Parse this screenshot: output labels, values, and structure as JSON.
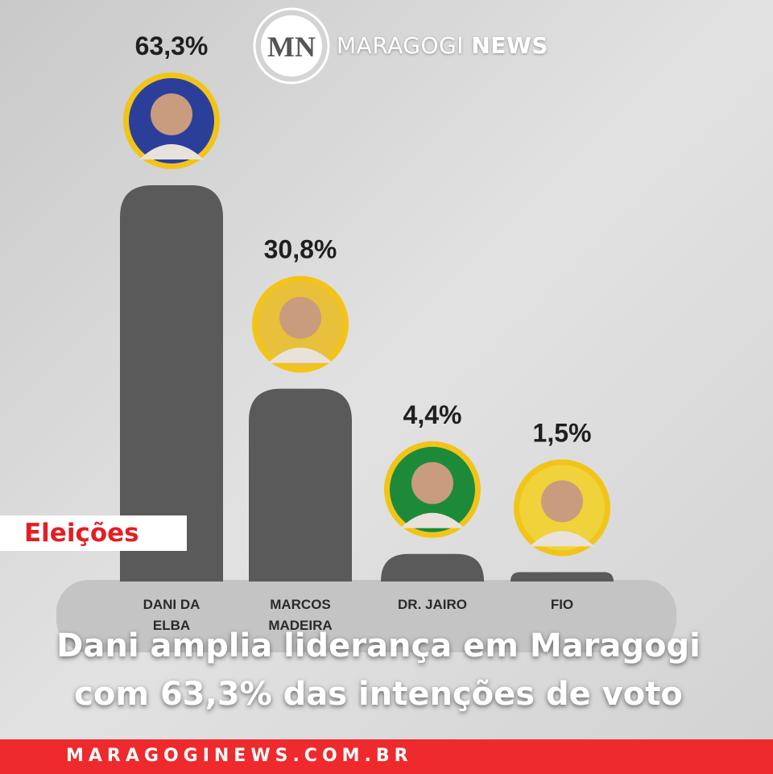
{
  "brand": {
    "name": "MARAGOGI",
    "highlight": "NEWS"
  },
  "chart_data": {
    "type": "bar",
    "categories": [
      "DANI DA ELBA",
      "MARCOS MADEIRA",
      "DR. JAIRO",
      "FIO"
    ],
    "values": [
      63.3,
      30.8,
      4.4,
      1.5
    ],
    "value_labels": [
      "63,3%",
      "30,8%",
      "4,4%",
      "1,5%"
    ],
    "color": "#5a5a5a"
  },
  "tag": "Eleições",
  "headline": [
    "Dani amplia liderança em Maragogi",
    "com 63,3% das intenções de voto"
  ],
  "footer": "MARAGOGINEWS.COM.BR"
}
